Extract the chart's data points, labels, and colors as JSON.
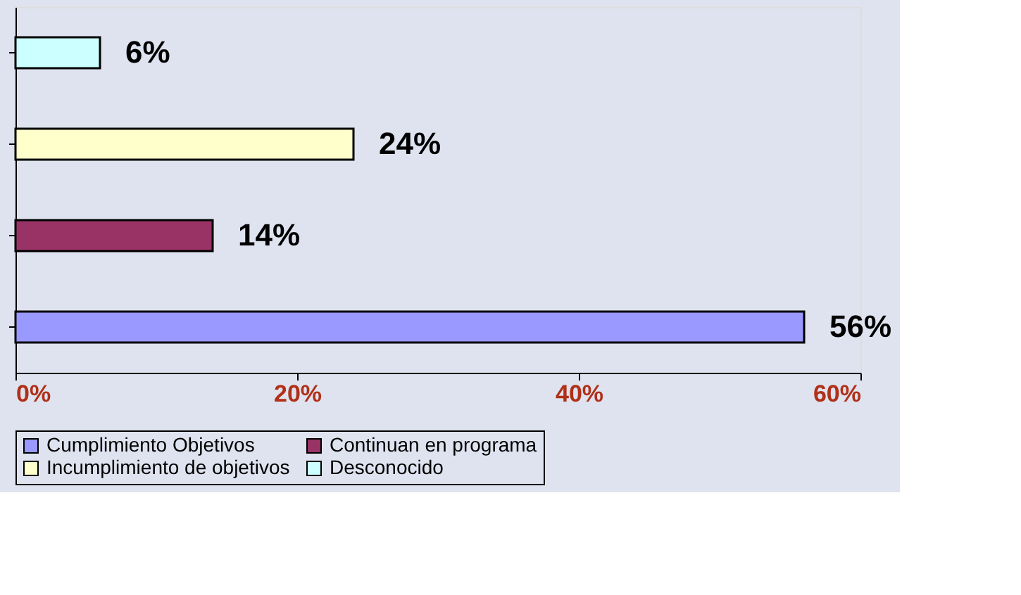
{
  "chart_data": {
    "type": "bar",
    "orientation": "horizontal",
    "categories": [
      null,
      null,
      null,
      null
    ],
    "series": [
      {
        "name": "Cumplimiento Objetivos",
        "color": "#9999ff",
        "values": [
          null,
          null,
          null,
          56
        ],
        "value_labels": [
          null,
          null,
          null,
          "56%"
        ]
      },
      {
        "name": "Continuan en programa",
        "color": "#993366",
        "values": [
          null,
          null,
          14,
          null
        ],
        "value_labels": [
          null,
          null,
          "14%",
          null
        ]
      },
      {
        "name": "Incumplimiento de objetivos",
        "color": "#ffffcc",
        "values": [
          null,
          24,
          null,
          null
        ],
        "value_labels": [
          null,
          "24%",
          null,
          null
        ]
      },
      {
        "name": "Desconocido",
        "color": "#ccffff",
        "values": [
          6,
          null,
          null,
          null
        ],
        "value_labels": [
          "6%",
          null,
          null,
          null
        ]
      }
    ],
    "xlim": [
      0,
      60
    ],
    "xticks": [
      {
        "value": 0,
        "label": "0%"
      },
      {
        "value": 20,
        "label": "20%"
      },
      {
        "value": 40,
        "label": "40%"
      },
      {
        "value": 60,
        "label": "60%"
      }
    ],
    "grid": false,
    "legend": "bottom"
  }
}
